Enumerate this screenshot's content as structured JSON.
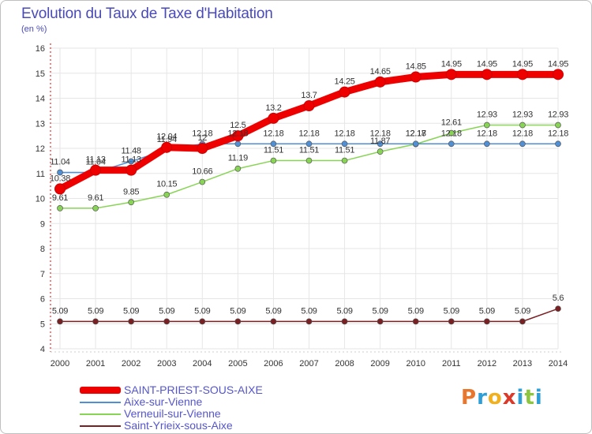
{
  "title": "Evolution du Taux de Taxe d'Habitation",
  "unit_label": "(en %)",
  "logo": {
    "letters": [
      "P",
      "r",
      "o",
      "x",
      "i",
      "t",
      "i"
    ],
    "colors": [
      "#e8762d",
      "#2e9fd6",
      "#f0b020",
      "#d93a2a",
      "#2e9fd6",
      "#8cc63f",
      "#2e9fd6"
    ]
  },
  "chart_data": {
    "type": "line",
    "x": [
      2000,
      2001,
      2002,
      2003,
      2004,
      2005,
      2006,
      2007,
      2008,
      2009,
      2010,
      2011,
      2012,
      2013,
      2014
    ],
    "ylim": [
      4,
      16
    ],
    "yticks": [
      4,
      5,
      6,
      7,
      8,
      9,
      10,
      11,
      12,
      13,
      14,
      15,
      16
    ],
    "grid": true,
    "legend_position": "bottom-left",
    "series": [
      {
        "name": "SAINT-PRIEST-SOUS-AIXE",
        "color": "#ee0000",
        "values": [
          10.38,
          11.13,
          11.13,
          12.04,
          12.0,
          12.5,
          13.2,
          13.7,
          14.25,
          14.65,
          14.85,
          14.95,
          14.95,
          14.95,
          14.95
        ],
        "labels": [
          "10.38",
          "11.13",
          "11.13",
          "12.04",
          "12",
          "12.5",
          "13.2",
          "13.7",
          "14.25",
          "14.65",
          "14.85",
          "14.95",
          "14.95",
          "14.95",
          "14.95"
        ]
      },
      {
        "name": "Aixe-sur-Vienne",
        "color": "#4f8fd6",
        "values": [
          11.04,
          11.04,
          11.48,
          11.94,
          12.18,
          12.18,
          12.18,
          12.18,
          12.18,
          12.18,
          12.18,
          12.18,
          12.18,
          12.18,
          12.18
        ],
        "labels": [
          "11.04",
          "11.04",
          "11.48",
          "11.94",
          "12.18",
          "12.18",
          "12.18",
          "12.18",
          "12.18",
          "12.18",
          "12.18",
          "12.18",
          "12.18",
          "12.18",
          "12.18"
        ]
      },
      {
        "name": "Verneuil-sur-Vienne",
        "color": "#88d455",
        "values": [
          9.61,
          9.61,
          9.85,
          10.15,
          10.66,
          11.19,
          11.51,
          11.51,
          11.51,
          11.87,
          12.17,
          12.61,
          12.93,
          12.93,
          12.93
        ],
        "labels": [
          "9.61",
          "9.61",
          "9.85",
          "10.15",
          "10.66",
          "11.19",
          "11.51",
          "11.51",
          "11.51",
          "11.87",
          "12.17",
          "12.61",
          "12.93",
          "12.93",
          "12.93"
        ]
      },
      {
        "name": "Saint-Yrieix-sous-Aixe",
        "color": "#7a1f22",
        "values": [
          5.09,
          5.09,
          5.09,
          5.09,
          5.09,
          5.09,
          5.09,
          5.09,
          5.09,
          5.09,
          5.09,
          5.09,
          5.09,
          5.09,
          5.6
        ],
        "labels": [
          "5.09",
          "5.09",
          "5.09",
          "5.09",
          "5.09",
          "5.09",
          "5.09",
          "5.09",
          "5.09",
          "5.09",
          "5.09",
          "5.09",
          "5.09",
          "5.09",
          "5.6"
        ]
      }
    ]
  }
}
